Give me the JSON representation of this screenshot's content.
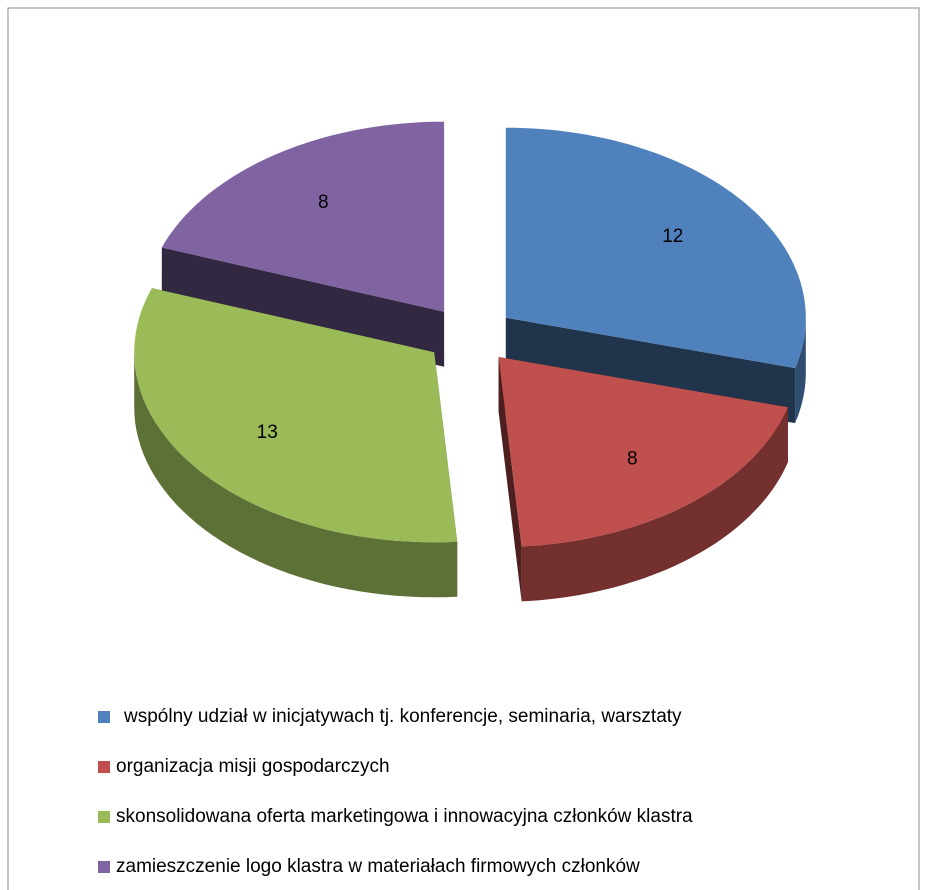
{
  "chart_data": {
    "type": "pie3d",
    "categories": [
      "wspólny udział w inicjatywach tj. konferencje, seminaria, warsztaty",
      "organizacja misji gospodarczych",
      "skonsolidowana oferta marketingowa i innowacyjna członków klastra",
      "zamieszczenie logo klastra w materiałach firmowych członków"
    ],
    "values": [
      12,
      8,
      13,
      8
    ],
    "colors": [
      "#4f81bd",
      "#c0504d",
      "#9bbb59",
      "#8064a2"
    ],
    "legend": "bottom"
  }
}
